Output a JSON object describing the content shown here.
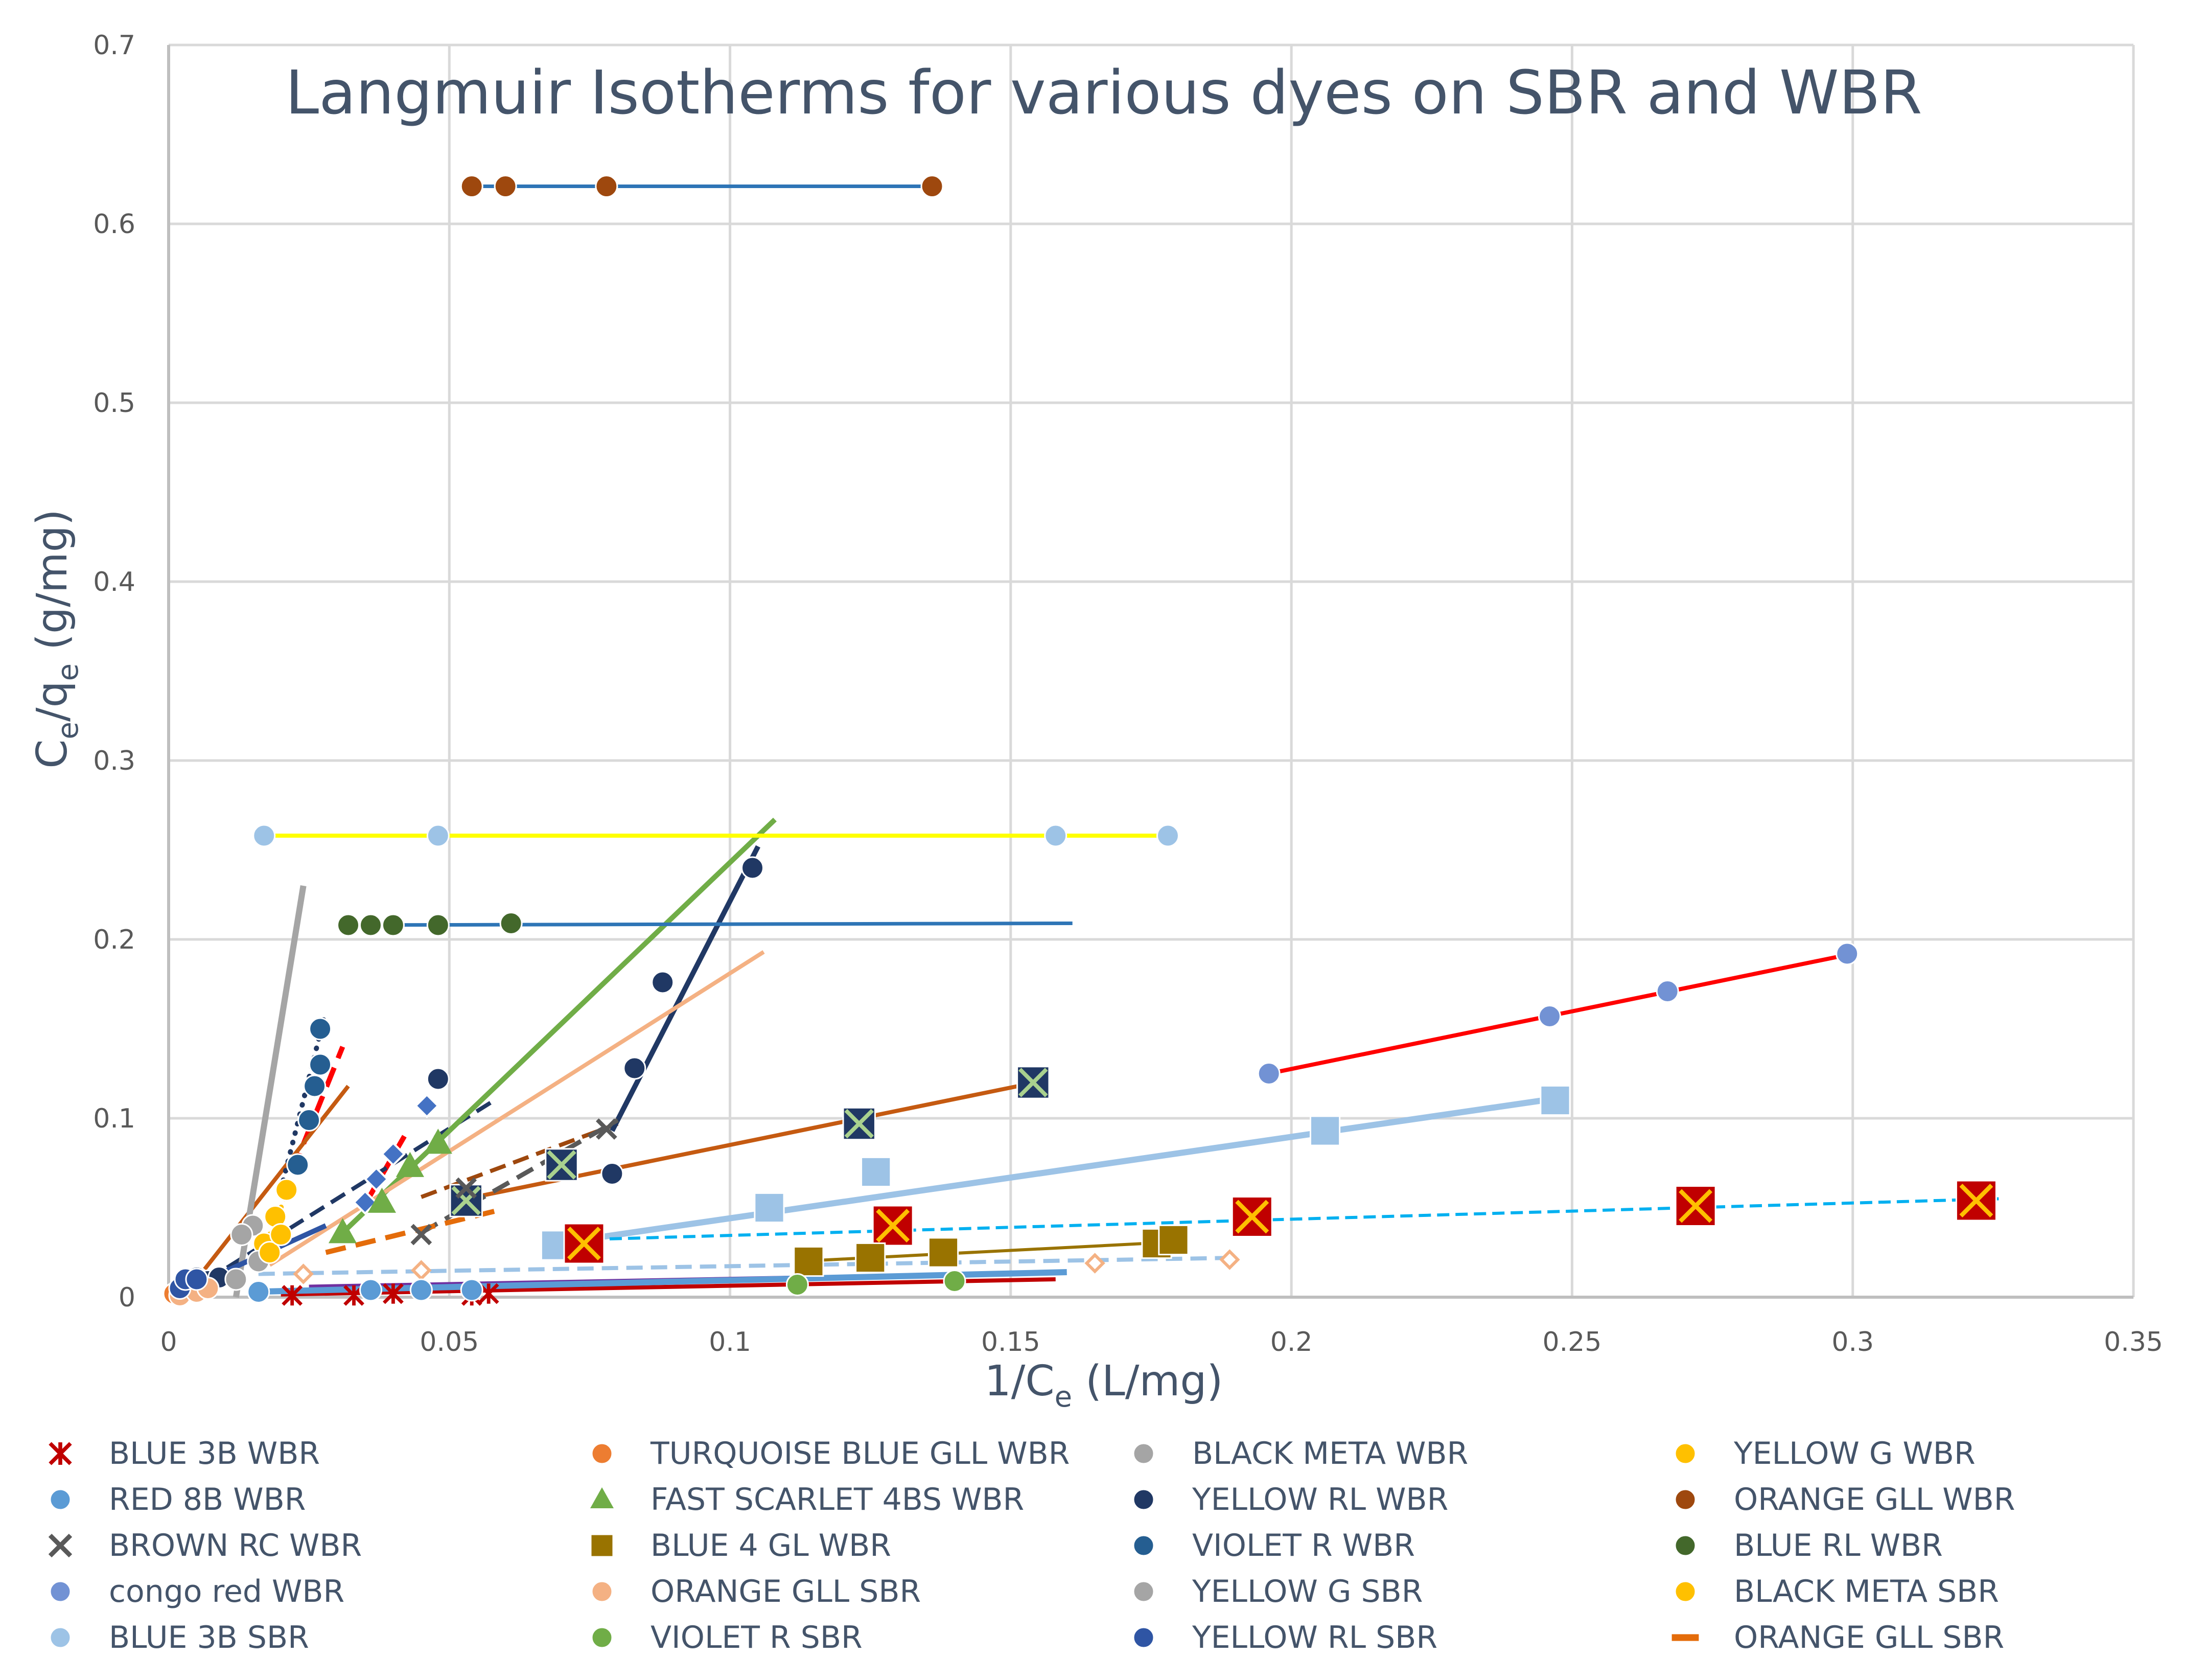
{
  "chart_data": {
    "type": "scatter",
    "title": "Langmuir Isotherms for various dyes on SBR and WBR",
    "xlabel": "1/C",
    "xlabel_sub": "e",
    "xlabel_unit": " (L/mg)",
    "ylabel_c": "C",
    "ylabel_sub1": "e",
    "ylabel_slash": "/q",
    "ylabel_sub2": "e",
    "ylabel_unit": " (g/mg)",
    "xlim": [
      0,
      0.35
    ],
    "ylim": [
      0,
      0.7
    ],
    "x_ticks": [
      "0",
      "0.05",
      "0.1",
      "0.15",
      "0.2",
      "0.25",
      "0.3",
      "0.35"
    ],
    "y_ticks": [
      "0",
      "0.1",
      "0.2",
      "0.3",
      "0.4",
      "0.5",
      "0.6",
      "0.7"
    ],
    "grid": true,
    "legend_position": "bottom",
    "series": [
      {
        "name": "BLUE 3B WBR",
        "marker": "asterisk",
        "color": "#c00000",
        "points": [
          [
            0.022,
            0.001
          ],
          [
            0.033,
            0.001
          ],
          [
            0.04,
            0.002
          ],
          [
            0.054,
            0.001
          ],
          [
            0.057,
            0.002
          ]
        ],
        "trend": {
          "from": [
            0.02,
            0.0015
          ],
          "to": [
            0.158,
            0.01
          ],
          "color": "#c00000",
          "dash": "solid",
          "width": 8
        }
      },
      {
        "name": "TURQUOISE BLUE GLL WBR",
        "marker": "circle",
        "color": "#ed7d31",
        "points": [
          [
            0.001,
            0.002
          ],
          [
            0.003,
            0.004
          ],
          [
            0.005,
            0.006
          ]
        ],
        "trend": null
      },
      {
        "name": "BLACK META WBR",
        "marker": "circle",
        "color": "#a5a5a5",
        "points": [
          [
            0.012,
            0.01
          ],
          [
            0.015,
            0.04
          ]
        ],
        "trend": {
          "from": [
            0.012,
            0.0
          ],
          "to": [
            0.024,
            0.23
          ],
          "color": "#a5a5a5",
          "dash": "solid",
          "width": 12
        }
      },
      {
        "name": "YELLOW G WBR",
        "marker": "circle",
        "color": "#ffc000",
        "points": [
          [
            0.017,
            0.03
          ],
          [
            0.019,
            0.045
          ],
          [
            0.021,
            0.06
          ]
        ],
        "trend": {
          "from": [
            0.016,
            0.02
          ],
          "to": [
            0.022,
            0.065
          ],
          "color": "#ffc000",
          "dash": "dotted",
          "width": 10
        }
      },
      {
        "name": "RED 8B WBR",
        "marker": "circle",
        "color": "#5b9bd5",
        "points": [
          [
            0.016,
            0.003
          ],
          [
            0.036,
            0.004
          ],
          [
            0.045,
            0.004
          ],
          [
            0.054,
            0.004
          ]
        ],
        "trend": {
          "from": [
            0.015,
            0.003
          ],
          "to": [
            0.16,
            0.014
          ],
          "color": "#5b9bd5",
          "dash": "solid",
          "width": 12
        }
      },
      {
        "name": "FAST SCARLET 4BS WBR",
        "marker": "triangle",
        "color": "#70ad47",
        "points": [
          [
            0.031,
            0.036
          ],
          [
            0.038,
            0.053
          ],
          [
            0.043,
            0.073
          ],
          [
            0.048,
            0.086
          ]
        ],
        "trend": {
          "from": [
            0.03,
            0.033
          ],
          "to": [
            0.108,
            0.267
          ],
          "color": "#70ad47",
          "dash": "solid",
          "width": 10
        }
      },
      {
        "name": "YELLOW RL WBR",
        "marker": "circle",
        "color": "#203864",
        "points": [
          [
            0.048,
            0.122
          ],
          [
            0.079,
            0.069
          ],
          [
            0.083,
            0.128
          ],
          [
            0.088,
            0.176
          ],
          [
            0.104,
            0.24
          ]
        ],
        "trend": {
          "from": [
            0.079,
            0.093
          ],
          "to": [
            0.105,
            0.252
          ],
          "color": "#203864",
          "dash": "solid",
          "width": 10
        }
      },
      {
        "name": "ORANGE GLL WBR",
        "marker": "circle",
        "color": "#9e480e",
        "points": [
          [
            0.054,
            0.621
          ],
          [
            0.06,
            0.621
          ],
          [
            0.078,
            0.621
          ],
          [
            0.136,
            0.621
          ]
        ],
        "trend": {
          "from": [
            0.053,
            0.621
          ],
          "to": [
            0.137,
            0.621
          ],
          "color": "#2e75b6",
          "dash": "solid",
          "width": 7
        }
      },
      {
        "name": "BROWN RC WBR",
        "marker": "x",
        "color": "#595959",
        "points": [
          [
            0.045,
            0.035
          ],
          [
            0.053,
            0.061
          ],
          [
            0.078,
            0.094
          ]
        ],
        "trend": {
          "from": [
            0.045,
            0.036
          ],
          "to": [
            0.08,
            0.099
          ],
          "color": "#595959",
          "dash": "dashed",
          "width": 9
        }
      },
      {
        "name": "BLUE 4 GL WBR",
        "marker": "square",
        "color": "#997300",
        "points": [
          [
            0.114,
            0.02
          ],
          [
            0.125,
            0.022
          ],
          [
            0.138,
            0.025
          ],
          [
            0.176,
            0.03
          ],
          [
            0.179,
            0.032
          ]
        ],
        "trend": {
          "from": [
            0.112,
            0.02
          ],
          "to": [
            0.18,
            0.031
          ],
          "color": "#997300",
          "dash": "solid",
          "width": 6
        }
      },
      {
        "name": "VIOLET R WBR",
        "marker": "circle",
        "color": "#255e91",
        "points": [
          [
            0.023,
            0.074
          ],
          [
            0.025,
            0.099
          ],
          [
            0.026,
            0.118
          ],
          [
            0.027,
            0.13
          ],
          [
            0.027,
            0.15
          ]
        ],
        "trend": {
          "from": [
            0.02,
            0.06
          ],
          "to": [
            0.028,
            0.16
          ],
          "color": "#203864",
          "dash": "dotted",
          "width": 10
        }
      },
      {
        "name": "BLUE RL WBR",
        "marker": "circle",
        "color": "#43682b",
        "points": [
          [
            0.032,
            0.208
          ],
          [
            0.036,
            0.208
          ],
          [
            0.04,
            0.208
          ],
          [
            0.048,
            0.208
          ],
          [
            0.061,
            0.209
          ]
        ],
        "trend": {
          "from": [
            0.031,
            0.208
          ],
          "to": [
            0.161,
            0.209
          ],
          "color": "#2e75b6",
          "dash": "solid",
          "width": 7
        }
      },
      {
        "name": "congo red WBR",
        "marker": "circle",
        "color": "#7292d4",
        "points": [
          [
            0.196,
            0.125
          ],
          [
            0.246,
            0.157
          ],
          [
            0.267,
            0.171
          ],
          [
            0.299,
            0.192
          ]
        ],
        "trend": {
          "from": [
            0.196,
            0.125
          ],
          "to": [
            0.3,
            0.192
          ],
          "color": "#ff0000",
          "dash": "solid",
          "width": 8
        }
      },
      {
        "name": "ORANGE GLL SBR",
        "marker": "circle",
        "color": "#f4b183",
        "points": [
          [
            0.002,
            0.001
          ],
          [
            0.005,
            0.003
          ],
          [
            0.007,
            0.005
          ]
        ],
        "trend": {
          "from": [
            0.018,
            0.018
          ],
          "to": [
            0.106,
            0.193
          ],
          "color": "#f4b183",
          "dash": "solid",
          "width": 8
        }
      },
      {
        "name": "YELLOW G SBR",
        "marker": "circle",
        "color": "#a5a5a5",
        "points": [
          [
            0.013,
            0.035
          ],
          [
            0.016,
            0.02
          ]
        ],
        "trend": null
      },
      {
        "name": "BLACK META SBR",
        "marker": "circle",
        "color": "#ffc000",
        "points": [
          [
            0.018,
            0.025
          ],
          [
            0.02,
            0.035
          ]
        ],
        "trend": null
      },
      {
        "name": "BLUE 3B SBR",
        "marker": "circle",
        "color": "#9dc3e6",
        "points": [
          [
            0.017,
            0.258
          ],
          [
            0.048,
            0.258
          ],
          [
            0.158,
            0.258
          ],
          [
            0.178,
            0.258
          ]
        ],
        "trend": {
          "from": [
            0.017,
            0.258
          ],
          "to": [
            0.179,
            0.258
          ],
          "color": "#ffff00",
          "dash": "solid",
          "width": 8
        }
      },
      {
        "name": "VIOLET R SBR",
        "marker": "circle",
        "color": "#70ad47",
        "points": [
          [
            0.112,
            0.007
          ],
          [
            0.14,
            0.009
          ]
        ],
        "trend": null
      },
      {
        "name": "YELLOW RL SBR",
        "marker": "circle",
        "color": "#2f55a4",
        "points": [
          [
            0.002,
            0.005
          ],
          [
            0.003,
            0.01
          ],
          [
            0.005,
            0.01
          ]
        ],
        "trend": {
          "from": [
            0.0,
            0.0
          ],
          "to": [
            0.028,
            0.04
          ],
          "color": "#2f55a4",
          "dash": "solid",
          "width": 10
        }
      },
      {
        "name": "ORANGE GLL SBR",
        "marker": "dash",
        "color": "#e46c0a",
        "points": [],
        "trend": {
          "from": [
            0.028,
            0.025
          ],
          "to": [
            0.058,
            0.048
          ],
          "color": "#e46c0a",
          "dash": "dashed",
          "width": 10
        }
      }
    ],
    "unlabeled_series": [
      {
        "marker": "square",
        "color": "#9dc3e6",
        "points": [
          [
            0.069,
            0.029
          ],
          [
            0.107,
            0.05
          ],
          [
            0.126,
            0.07
          ],
          [
            0.206,
            0.093
          ],
          [
            0.247,
            0.11
          ]
        ],
        "trend": {
          "from": [
            0.069,
            0.03
          ],
          "to": [
            0.247,
            0.111
          ],
          "color": "#9dc3e6",
          "dash": "solid",
          "width": 12
        }
      },
      {
        "marker": "xsquare",
        "color": "#c00000",
        "points": [
          [
            0.074,
            0.03
          ],
          [
            0.129,
            0.04
          ],
          [
            0.193,
            0.045
          ],
          [
            0.272,
            0.051
          ],
          [
            0.322,
            0.054
          ]
        ],
        "trend": {
          "from": [
            0.072,
            0.032
          ],
          "to": [
            0.326,
            0.055
          ],
          "color": "#00b0f0",
          "dash": "dashed",
          "width": 6
        }
      },
      {
        "marker": "xsquare-dark",
        "color": "#203864",
        "points": [
          [
            0.053,
            0.054
          ],
          [
            0.07,
            0.074
          ],
          [
            0.123,
            0.097
          ],
          [
            0.154,
            0.12
          ]
        ],
        "trend": {
          "from": [
            0.053,
            0.055
          ],
          "to": [
            0.156,
            0.121
          ],
          "color": "#c55a11",
          "dash": "solid",
          "width": 8
        }
      },
      {
        "marker": "diamond",
        "color": "#4472c4",
        "points": [
          [
            0.035,
            0.053
          ],
          [
            0.037,
            0.066
          ],
          [
            0.04,
            0.08
          ],
          [
            0.046,
            0.107
          ]
        ],
        "trend": {
          "from": [
            0.035,
            0.052
          ],
          "to": [
            0.042,
            0.09
          ],
          "color": "#ff0000",
          "dash": "dashed",
          "width": 10
        }
      },
      {
        "marker": "diamond-outline",
        "color": "#f4b183",
        "points": [
          [
            0.024,
            0.013
          ],
          [
            0.045,
            0.015
          ],
          [
            0.165,
            0.019
          ],
          [
            0.189,
            0.021
          ]
        ],
        "trend": {
          "from": [
            0.016,
            0.013
          ],
          "to": [
            0.19,
            0.022
          ],
          "color": "#9dc3e6",
          "dash": "dashed",
          "width": 8
        }
      },
      {
        "marker": "circle",
        "color": "#203864",
        "points": [
          [
            0.003,
            0.01
          ],
          [
            0.005,
            0.011
          ],
          [
            0.007,
            0.009
          ],
          [
            0.009,
            0.011
          ]
        ],
        "trend": {
          "from": [
            0.003,
            0.002
          ],
          "to": [
            0.058,
            0.11
          ],
          "color": "#203864",
          "dash": "dashed",
          "width": 8
        }
      },
      {
        "marker": "none",
        "color": "#ff0000",
        "points": [],
        "trend": {
          "from": [
            0.022,
            0.07
          ],
          "to": [
            0.031,
            0.14
          ],
          "color": "#ff0000",
          "dash": "dashed",
          "width": 10
        }
      },
      {
        "marker": "none",
        "color": "#c55a11",
        "points": [],
        "trend": {
          "from": [
            0.005,
            0.01
          ],
          "to": [
            0.032,
            0.118
          ],
          "color": "#c55a11",
          "dash": "solid",
          "width": 8
        }
      },
      {
        "marker": "none",
        "color": "#7030a0",
        "points": [],
        "trend": {
          "from": [
            0.025,
            0.006
          ],
          "to": [
            0.145,
            0.013
          ],
          "color": "#7030a0",
          "dash": "solid",
          "width": 7
        }
      },
      {
        "marker": "none",
        "color": "#e46c0a",
        "points": [],
        "trend": {
          "from": [
            0.045,
            0.056
          ],
          "to": [
            0.08,
            0.097
          ],
          "color": "#9e480e",
          "dash": "dashed",
          "width": 8
        }
      }
    ]
  }
}
